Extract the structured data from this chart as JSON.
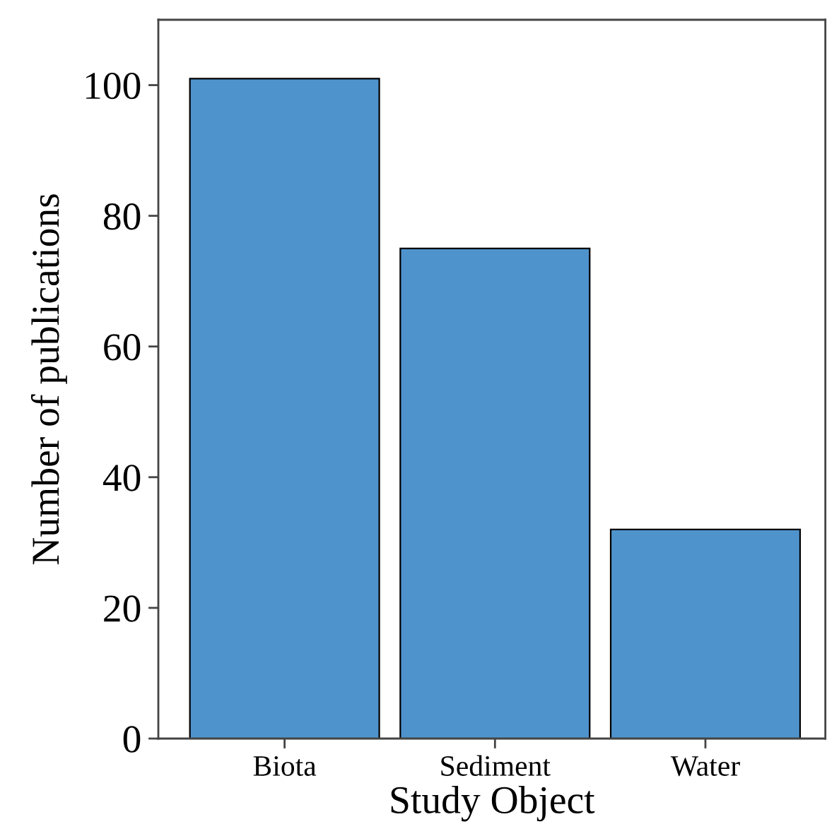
{
  "chart_data": {
    "type": "bar",
    "xlabel": "Study Object",
    "ylabel": "Number of publications",
    "categories": [
      "Biota",
      "Sediment",
      "Water"
    ],
    "values": [
      101,
      75,
      32
    ],
    "color": "#4f93cd",
    "ylim": [
      0,
      110
    ],
    "yticks": [
      0,
      20,
      40,
      60,
      80,
      100
    ],
    "grid": false
  }
}
